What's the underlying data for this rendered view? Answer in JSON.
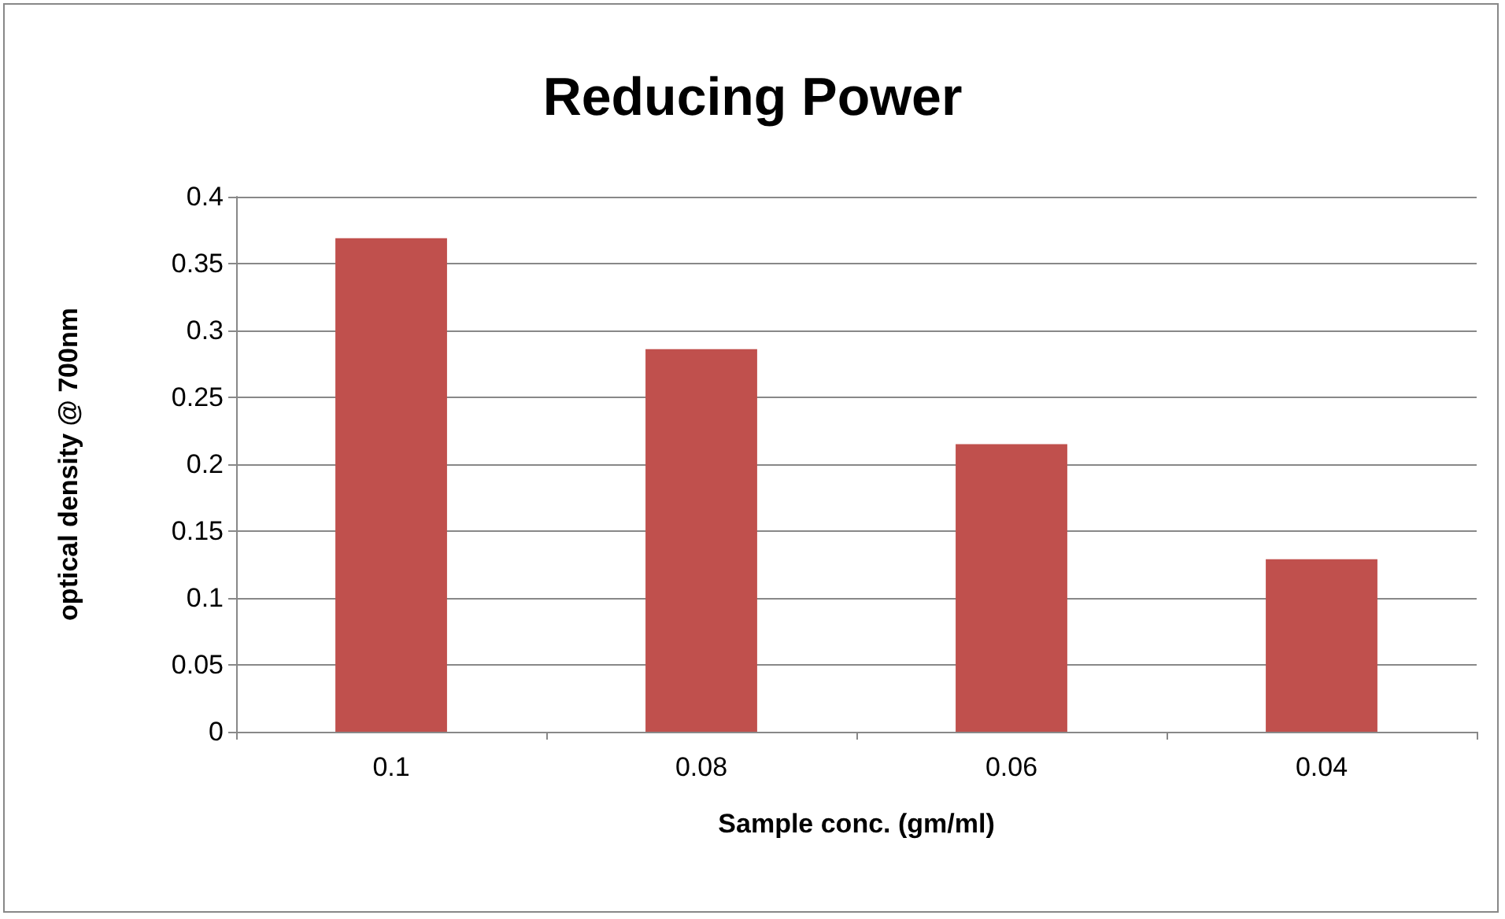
{
  "chart_data": {
    "type": "bar",
    "title": "Reducing Power",
    "xlabel": "Sample conc. (gm/ml)",
    "ylabel": "optical density @ 700nm",
    "categories": [
      "0.1",
      "0.08",
      "0.06",
      "0.04"
    ],
    "values": [
      0.369,
      0.286,
      0.215,
      0.129
    ],
    "color": "#c0504d",
    "ylim": [
      0,
      0.4
    ],
    "yticks": [
      0,
      0.05,
      0.1,
      0.15,
      0.2,
      0.25,
      0.3,
      0.35,
      0.4
    ],
    "grid": "y"
  }
}
